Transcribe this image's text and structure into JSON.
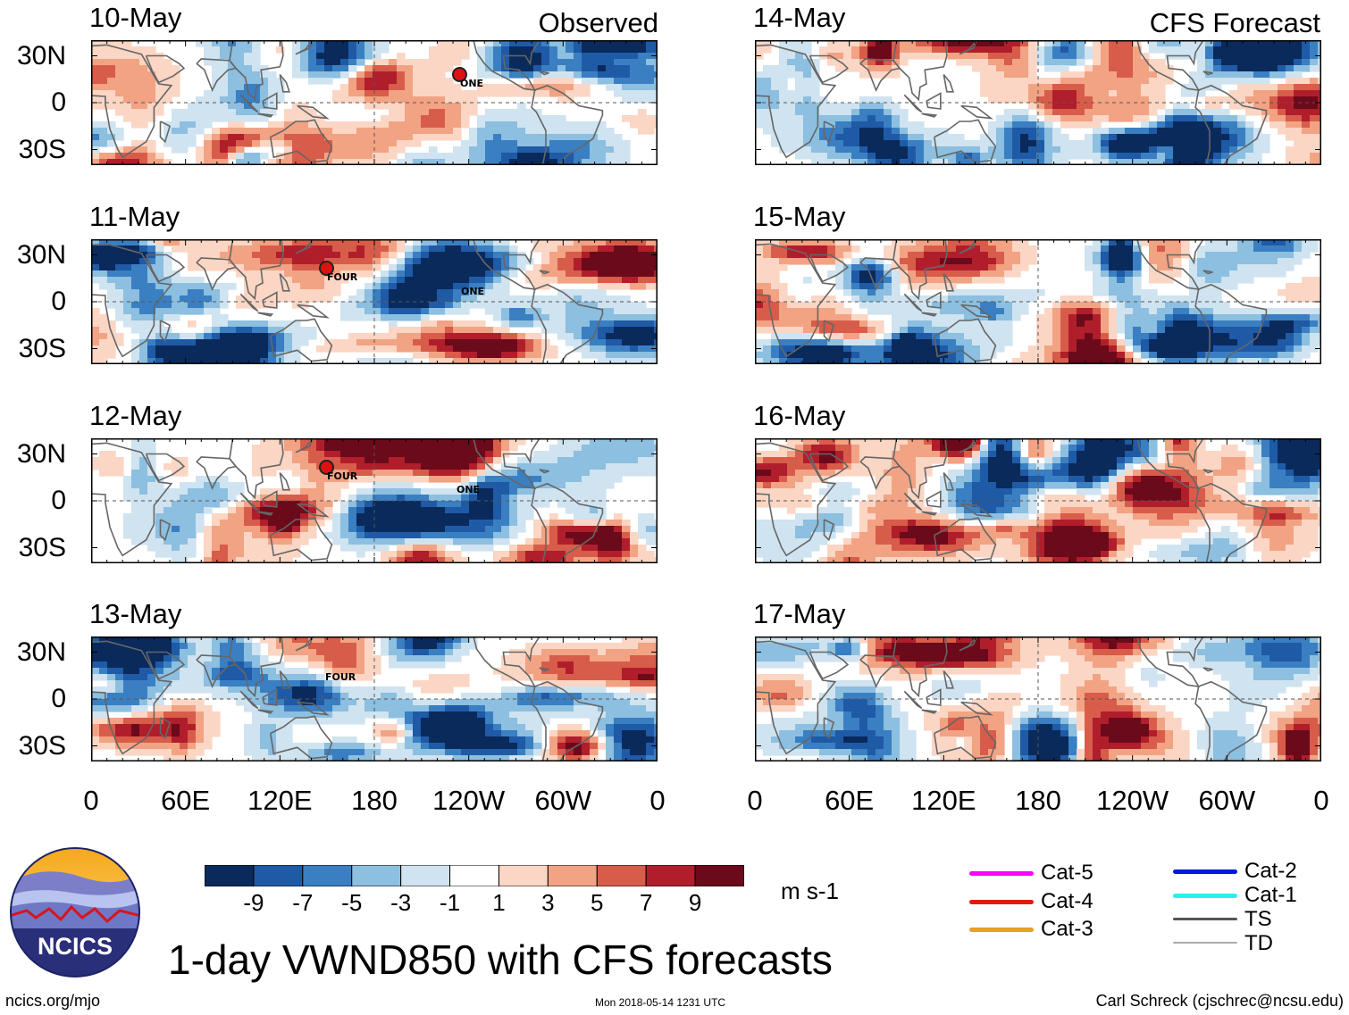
{
  "chart_data": {
    "type": "heatmap",
    "title": "1-day VWND850 with CFS forecasts",
    "variable": "850 hPa meridional wind",
    "units": "m s-1",
    "columns": [
      {
        "label": "Observed",
        "panels": [
          "10-May",
          "11-May",
          "12-May",
          "13-May"
        ]
      },
      {
        "label": "CFS Forecast",
        "panels": [
          "14-May",
          "15-May",
          "16-May",
          "17-May"
        ]
      }
    ],
    "lat_ticks": [
      "30N",
      "0",
      "30S"
    ],
    "lon_ticks": [
      "0",
      "60E",
      "120E",
      "180",
      "120W",
      "60W",
      "0"
    ],
    "colorbar": {
      "colors": [
        "#0a2a5c",
        "#1f5aa6",
        "#3a7fc2",
        "#8cbfe0",
        "#cfe3f0",
        "#ffffff",
        "#fbd6c4",
        "#f2a384",
        "#d85c4a",
        "#b01e2c",
        "#6b0a1a"
      ],
      "ticks": [
        "-9",
        "-7",
        "-5",
        "-3",
        "-1",
        "1",
        "3",
        "5",
        "7",
        "9"
      ]
    },
    "storms": [
      {
        "panel": "10-May",
        "name": "ONE"
      },
      {
        "panel": "11-May",
        "name": "FOUR"
      },
      {
        "panel": "11-May",
        "name": "ONE"
      },
      {
        "panel": "12-May",
        "name": "FOUR"
      },
      {
        "panel": "12-May",
        "name": "ONE"
      },
      {
        "panel": "13-May",
        "name": "FOUR"
      }
    ],
    "storm_legend": [
      {
        "label": "Cat-5",
        "color": "#ff00ff"
      },
      {
        "label": "Cat-4",
        "color": "#e8160c"
      },
      {
        "label": "Cat-3",
        "color": "#e8a020"
      },
      {
        "label": "Cat-2",
        "color": "#0018e0"
      },
      {
        "label": "Cat-1",
        "color": "#28f0f0"
      },
      {
        "label": "TS",
        "color": "#555555"
      },
      {
        "label": "TD",
        "color": "#aaaaaa"
      }
    ]
  },
  "logo": {
    "text": "NCICS"
  },
  "footer": {
    "url": "ncics.org/mjo",
    "timestamp": "Mon 2018-05-14 1231 UTC",
    "author": "Carl Schreck (cjschrec@ncsu.edu)"
  }
}
